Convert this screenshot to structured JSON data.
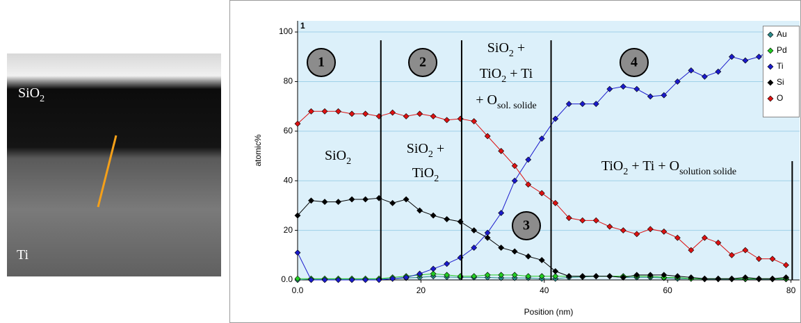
{
  "image": {
    "labels": [
      [
        {
          "text": "SiO"
        },
        {
          "text": "2",
          "sub": true
        }
      ],
      [
        {
          "text": "Ti"
        }
      ]
    ]
  },
  "chart_data": {
    "type": "line",
    "panel_label": "1",
    "x_label": "Position (nm)",
    "y_label": "atomic%",
    "x": [
      0,
      2.2,
      4.4,
      6.6,
      8.8,
      11,
      13.2,
      15.4,
      17.6,
      19.8,
      22,
      24.2,
      26.4,
      28.6,
      30.8,
      33,
      35.2,
      37.4,
      39.6,
      41.8,
      44,
      46.2,
      48.4,
      50.6,
      52.8,
      55,
      57.2,
      59.4,
      61.6,
      63.8,
      66,
      68.2,
      70.4,
      72.6,
      74.8,
      77,
      79.2
    ],
    "series": [
      {
        "name": "Au",
        "color": "#2a8a8a",
        "values": [
          0,
          0.3,
          0.3,
          0.3,
          0.3,
          0.3,
          0.3,
          0.5,
          0.8,
          1,
          1.5,
          1.2,
          1,
          1,
          1,
          0.8,
          0.8,
          0.8,
          0.5,
          0.5,
          1,
          1.2,
          1.5,
          1.5,
          1,
          1,
          1,
          0.8,
          0.5,
          0.5,
          0.3,
          0.3,
          0.3,
          0.3,
          0.3,
          0.3,
          0.3
        ]
      },
      {
        "name": "Pd",
        "color": "#22cc22",
        "values": [
          0.5,
          0.5,
          0.5,
          0.5,
          0.5,
          0.5,
          0.5,
          1,
          1.5,
          2,
          2.5,
          2,
          1.5,
          1.5,
          2,
          2,
          2,
          1.5,
          1.5,
          1.5,
          1.5,
          1.5,
          1.5,
          1.5,
          1.5,
          1.5,
          1.5,
          1,
          1,
          0.5,
          0.5,
          0.5,
          0.5,
          0.5,
          0.5,
          0.5,
          0.5
        ]
      },
      {
        "name": "Ti",
        "color": "#1a1acc",
        "values": [
          11,
          0,
          0,
          0,
          0,
          0,
          0,
          0.5,
          1,
          2.5,
          4.5,
          6.5,
          9,
          13,
          19,
          27,
          40,
          48.5,
          57,
          65,
          71,
          71,
          71,
          77,
          78,
          77,
          74,
          74.5,
          80,
          84.5,
          82,
          84,
          90,
          88.5,
          90,
          93,
          97
        ]
      },
      {
        "name": "Si",
        "color": "#000000",
        "values": [
          26,
          32,
          31.5,
          31.5,
          32.5,
          32.5,
          33,
          31,
          32.5,
          28,
          26,
          24.5,
          23.5,
          20,
          17,
          13,
          11.5,
          9.5,
          8,
          3.5,
          1.5,
          1.5,
          1.5,
          1.5,
          1,
          2,
          2,
          2,
          1.5,
          1,
          0.5,
          0.5,
          0.5,
          1,
          0.5,
          0.5,
          1
        ]
      },
      {
        "name": "O",
        "color": "#dd1111",
        "values": [
          63,
          68,
          68,
          68,
          67,
          67,
          66,
          67.5,
          66,
          67,
          66,
          64.5,
          65,
          64,
          58,
          52,
          46,
          38.5,
          35,
          31,
          25,
          24,
          24,
          21.5,
          20,
          18.5,
          20.5,
          19.5,
          17,
          12,
          17,
          15,
          10,
          12,
          8.5,
          8.5,
          6
        ]
      }
    ],
    "xlim": [
      0,
      81.4
    ],
    "ylim": [
      0,
      104.5
    ],
    "xticks": [
      {
        "value": 0,
        "label": "0.0"
      },
      20,
      40,
      60,
      80
    ],
    "yticks": [
      {
        "value": 0,
        "label": "0.0"
      },
      20,
      40,
      60,
      80,
      100
    ],
    "grid": true,
    "legend": "top-right",
    "boundaries": [
      13.5,
      26.6,
      41.1,
      80.2
    ],
    "markers": [
      "1",
      "2",
      "3",
      "4"
    ],
    "region_labels": [
      [
        [
          {
            "text": "SiO"
          },
          {
            "text": "2",
            "sub": true
          }
        ]
      ],
      [
        [
          {
            "text": "SiO"
          },
          {
            "text": "2",
            "sub": true
          },
          {
            "text": " +"
          }
        ],
        [
          {
            "text": "TiO"
          },
          {
            "text": "2",
            "sub": true
          }
        ]
      ],
      [
        [
          {
            "text": "SiO"
          },
          {
            "text": "2",
            "sub": true
          },
          {
            "text": " +"
          }
        ],
        [
          {
            "text": "TiO"
          },
          {
            "text": "2",
            "sub": true
          },
          {
            "text": " + Ti"
          }
        ],
        [
          {
            "text": "+ O"
          },
          {
            "text": "sol. solide",
            "sub": true
          }
        ]
      ],
      [
        [
          {
            "text": "TiO"
          },
          {
            "text": "2",
            "sub": true
          },
          {
            "text": " + Ti + O"
          },
          {
            "text": "solution solide",
            "sub": true
          }
        ]
      ]
    ]
  }
}
